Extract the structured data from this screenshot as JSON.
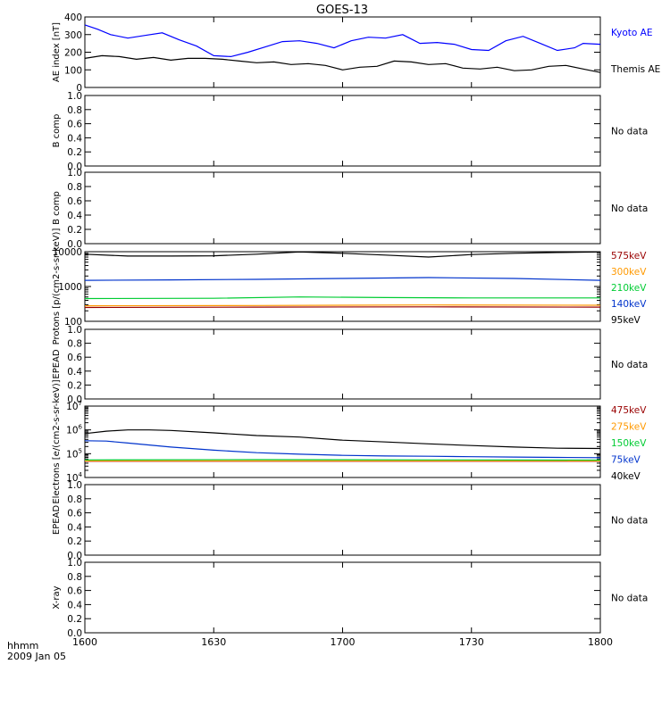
{
  "title": "GOES-13",
  "x_axis": {
    "corner_label_1": "hhmm",
    "corner_label_2": "2009 Jan 05",
    "ticks": [
      "1600",
      "1630",
      "1700",
      "1730",
      "1800"
    ]
  },
  "chart_data": [
    {
      "type": "line",
      "ylabel": "AE index [nT]",
      "ylim": [
        0,
        400
      ],
      "yticks": [
        "0",
        "100",
        "200",
        "300",
        "400"
      ],
      "x_range": [
        "16:00",
        "18:00"
      ],
      "series": [
        {
          "name": "Kyoto AE",
          "color": "#0000ff",
          "x": [
            0,
            3,
            6,
            10,
            14,
            18,
            22,
            26,
            30,
            34,
            38,
            42,
            46,
            50,
            54,
            58,
            62,
            66,
            70,
            74,
            78,
            82,
            86,
            90,
            94,
            98,
            102,
            106,
            110,
            114,
            116,
            120
          ],
          "y": [
            355,
            330,
            300,
            280,
            295,
            310,
            270,
            235,
            180,
            175,
            200,
            230,
            260,
            265,
            250,
            225,
            265,
            285,
            280,
            300,
            250,
            255,
            245,
            215,
            210,
            265,
            290,
            250,
            210,
            225,
            250,
            245
          ]
        },
        {
          "name": "Themis AE",
          "color": "#000000",
          "x": [
            0,
            4,
            8,
            12,
            16,
            20,
            24,
            28,
            32,
            36,
            40,
            44,
            48,
            52,
            56,
            60,
            64,
            68,
            72,
            76,
            80,
            84,
            88,
            92,
            96,
            100,
            104,
            108,
            112,
            116,
            120
          ],
          "y": [
            165,
            180,
            175,
            160,
            170,
            155,
            165,
            165,
            160,
            150,
            140,
            145,
            130,
            135,
            125,
            100,
            115,
            120,
            150,
            145,
            130,
            135,
            110,
            105,
            115,
            95,
            100,
            120,
            125,
            105,
            85
          ]
        }
      ]
    },
    {
      "type": "line",
      "ylabel": "B comp",
      "ylim": [
        0,
        1
      ],
      "yticks": [
        "0.0",
        "0.2",
        "0.4",
        "0.6",
        "0.8",
        "1.0"
      ],
      "note": "No data",
      "series": []
    },
    {
      "type": "line",
      "ylabel": "B comp",
      "ylim": [
        0,
        1
      ],
      "yticks": [
        "0.0",
        "0.2",
        "0.4",
        "0.6",
        "0.8",
        "1.0"
      ],
      "note": "No data",
      "series": []
    },
    {
      "type": "line",
      "ylabel": "Protons [p/(cm2-s-sr-keV)]",
      "scale": "log",
      "ylim": [
        100,
        10000
      ],
      "yticks": [
        "100",
        "1000",
        "10000"
      ],
      "series": [
        {
          "name": "575keV",
          "color": "#990000",
          "x": [
            0,
            40,
            80,
            120
          ],
          "y": [
            250,
            255,
            260,
            255
          ]
        },
        {
          "name": "300keV",
          "color": "#ff9900",
          "x": [
            0,
            40,
            80,
            120
          ],
          "y": [
            280,
            285,
            295,
            290
          ]
        },
        {
          "name": "210keV",
          "color": "#00cc33",
          "x": [
            0,
            30,
            50,
            70,
            90,
            120
          ],
          "y": [
            450,
            460,
            500,
            480,
            470,
            470
          ]
        },
        {
          "name": "140keV",
          "color": "#0033cc",
          "x": [
            0,
            20,
            40,
            60,
            80,
            100,
            120
          ],
          "y": [
            1500,
            1550,
            1600,
            1700,
            1800,
            1700,
            1500
          ]
        },
        {
          "name": "95keV",
          "color": "#000000",
          "x": [
            0,
            10,
            20,
            30,
            40,
            50,
            60,
            70,
            80,
            90,
            100,
            110,
            120
          ],
          "y": [
            8500,
            7500,
            7500,
            7600,
            8500,
            9800,
            9000,
            8000,
            7000,
            8300,
            9000,
            9500,
            9800
          ]
        }
      ]
    },
    {
      "type": "line",
      "ylabel": "EPEAD",
      "ylim": [
        0,
        1
      ],
      "yticks": [
        "0.0",
        "0.2",
        "0.4",
        "0.6",
        "0.8",
        "1.0"
      ],
      "note": "No data",
      "series": []
    },
    {
      "type": "line",
      "ylabel": "Electrons [e/(cm2-s-sr-keV)]",
      "scale": "log",
      "ylim": [
        10000,
        10000000
      ],
      "yticks": [
        "10^4",
        "10^5",
        "10^6",
        "10^7"
      ],
      "series": [
        {
          "name": "475keV",
          "color": "#990000",
          "x": [
            0,
            60,
            120
          ],
          "y": [
            48000,
            48000,
            48000
          ]
        },
        {
          "name": "275keV",
          "color": "#ff9900",
          "x": [
            0,
            60,
            120
          ],
          "y": [
            50000,
            50000,
            50000
          ]
        },
        {
          "name": "150keV",
          "color": "#00cc33",
          "x": [
            0,
            40,
            80,
            120
          ],
          "y": [
            55000,
            56000,
            55000,
            54000
          ]
        },
        {
          "name": "75keV",
          "color": "#0033cc",
          "x": [
            0,
            5,
            10,
            20,
            30,
            40,
            50,
            60,
            70,
            80,
            90,
            100,
            110,
            120
          ],
          "y": [
            350000,
            340000,
            280000,
            190000,
            140000,
            110000,
            95000,
            85000,
            80000,
            78000,
            75000,
            72000,
            70000,
            68000
          ]
        },
        {
          "name": "40keV",
          "color": "#000000",
          "x": [
            0,
            5,
            10,
            15,
            20,
            30,
            40,
            50,
            60,
            70,
            80,
            90,
            100,
            110,
            120
          ],
          "y": [
            700000,
            880000,
            1000000,
            1000000,
            950000,
            750000,
            580000,
            500000,
            370000,
            310000,
            260000,
            220000,
            190000,
            170000,
            165000
          ]
        }
      ]
    },
    {
      "type": "line",
      "ylabel": "EPEAD",
      "ylim": [
        0,
        1
      ],
      "yticks": [
        "0.0",
        "0.2",
        "0.4",
        "0.6",
        "0.8",
        "1.0"
      ],
      "note": "No data",
      "series": []
    },
    {
      "type": "line",
      "ylabel": "X-ray",
      "ylim": [
        0,
        1
      ],
      "yticks": [
        "0.0",
        "0.2",
        "0.4",
        "0.6",
        "0.8",
        "1.0"
      ],
      "note": "No data",
      "series": []
    }
  ]
}
